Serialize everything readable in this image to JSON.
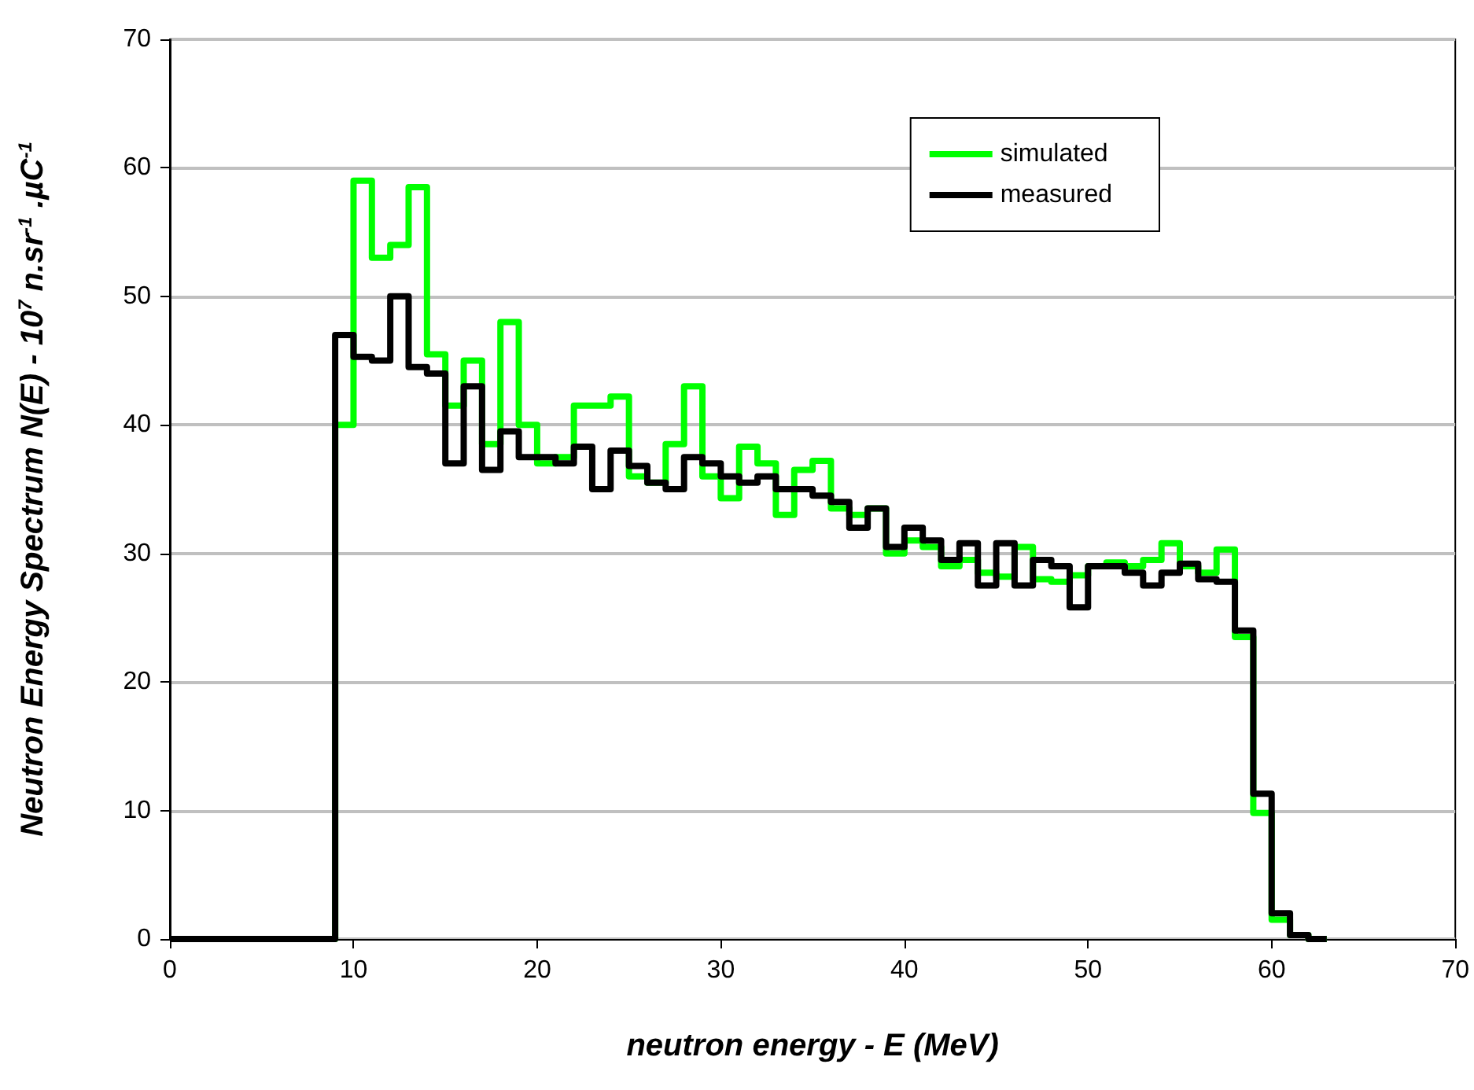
{
  "chart_data": {
    "type": "step",
    "xlabel": "neutron energy - E (MeV)",
    "ylabel": "Neutron Energy Spectrum N(E) - 10$^{7}$ n.sr$^{-1}$ .µC$^{-1}$",
    "x": [
      0,
      1,
      2,
      3,
      4,
      5,
      6,
      7,
      8,
      9,
      10,
      11,
      12,
      13,
      14,
      15,
      16,
      17,
      18,
      19,
      20,
      21,
      22,
      23,
      24,
      25,
      26,
      27,
      28,
      29,
      30,
      31,
      32,
      33,
      34,
      35,
      36,
      37,
      38,
      39,
      40,
      41,
      42,
      43,
      44,
      45,
      46,
      47,
      48,
      49,
      50,
      51,
      52,
      53,
      54,
      55,
      56,
      57,
      58,
      59,
      60,
      61,
      62,
      63
    ],
    "series": [
      {
        "name": "simulated",
        "color": "#00ff00",
        "values": [
          null,
          null,
          null,
          null,
          null,
          null,
          null,
          null,
          0,
          40,
          59,
          53,
          54,
          58.5,
          45.5,
          41.5,
          45,
          38.5,
          48,
          40,
          37,
          37.5,
          41.5,
          41.5,
          42.2,
          36,
          35.5,
          38.5,
          43,
          36,
          34.3,
          38.3,
          37,
          33,
          36.5,
          37.2,
          33.5,
          33,
          33.5,
          30,
          31,
          30.5,
          29,
          29.5,
          28.5,
          28.2,
          30.5,
          28,
          27.8,
          28.3,
          29,
          29.3,
          29,
          29.5,
          30.8,
          29,
          28.5,
          30.3,
          23.5,
          9.8,
          1.5,
          0.3,
          0,
          0
        ]
      },
      {
        "name": "measured",
        "color": "#000000",
        "values": [
          0,
          0,
          0,
          0,
          0,
          0,
          0,
          0,
          0,
          47,
          45.3,
          45,
          50,
          44.5,
          44,
          37,
          43,
          36.5,
          39.5,
          37.5,
          37.5,
          37,
          38.3,
          35,
          38,
          36.8,
          35.5,
          35,
          37.5,
          37,
          36,
          35.5,
          36,
          35,
          35,
          34.5,
          34,
          32,
          33.5,
          30.5,
          32,
          31,
          29.5,
          30.8,
          27.5,
          30.8,
          27.5,
          29.5,
          29,
          25.8,
          29,
          29,
          28.5,
          27.5,
          28.5,
          29.2,
          28,
          27.8,
          24,
          11.3,
          2,
          0.3,
          0,
          0
        ]
      }
    ],
    "xlim": [
      0,
      70
    ],
    "xticks": [
      0,
      10,
      20,
      30,
      40,
      50,
      60,
      70
    ],
    "ylim": [
      0,
      70
    ],
    "yticks": [
      0,
      10,
      20,
      30,
      40,
      50,
      60,
      70
    ],
    "grid": "y",
    "legend": "top right",
    "marker": "none",
    "line_style": "solid"
  }
}
